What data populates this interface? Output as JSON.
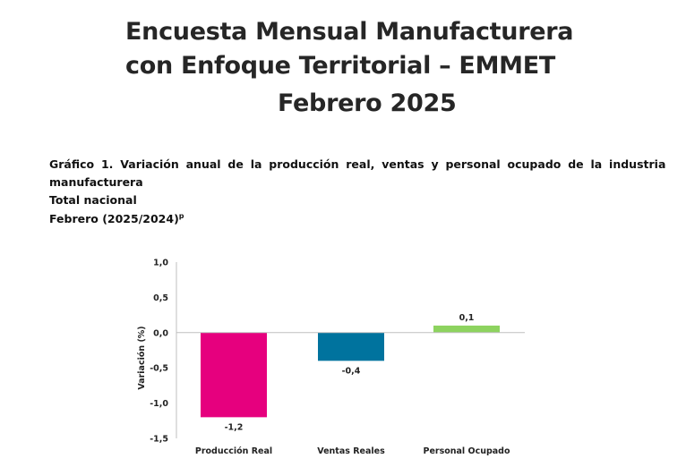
{
  "header": {
    "title_line1": "Encuesta Mensual Manufacturera",
    "title_line2": "con Enfoque Territorial – EMMET",
    "title_line3": "Febrero 2025"
  },
  "caption": {
    "line1": "Gráfico 1. Variación anual de la producción real, ventas y personal ocupado de la industria",
    "line2": "manufacturera",
    "line3": "Total nacional",
    "line4": "Febrero (2025/2024)",
    "line4_sup": "p"
  },
  "chart_data": {
    "type": "bar",
    "categories": [
      "Producción Real",
      "Ventas Reales",
      "Personal Ocupado"
    ],
    "values": [
      -1.2,
      -0.4,
      0.1
    ],
    "data_labels": [
      "-1,2",
      "-0,4",
      "0,1"
    ],
    "colors": [
      "#e6007e",
      "#00739e",
      "#8dd35f"
    ],
    "title": "",
    "xlabel": "",
    "ylabel": "Variación (%)",
    "ylim": [
      -1.5,
      1.0
    ],
    "yticks": [
      1.0,
      0.5,
      0.0,
      -0.5,
      -1.0,
      -1.5
    ],
    "ytick_labels": [
      "1,0",
      "0,5",
      "0,0",
      "-0,5",
      "-1,0",
      "-1,5"
    ],
    "grid": false,
    "legend": "none"
  }
}
